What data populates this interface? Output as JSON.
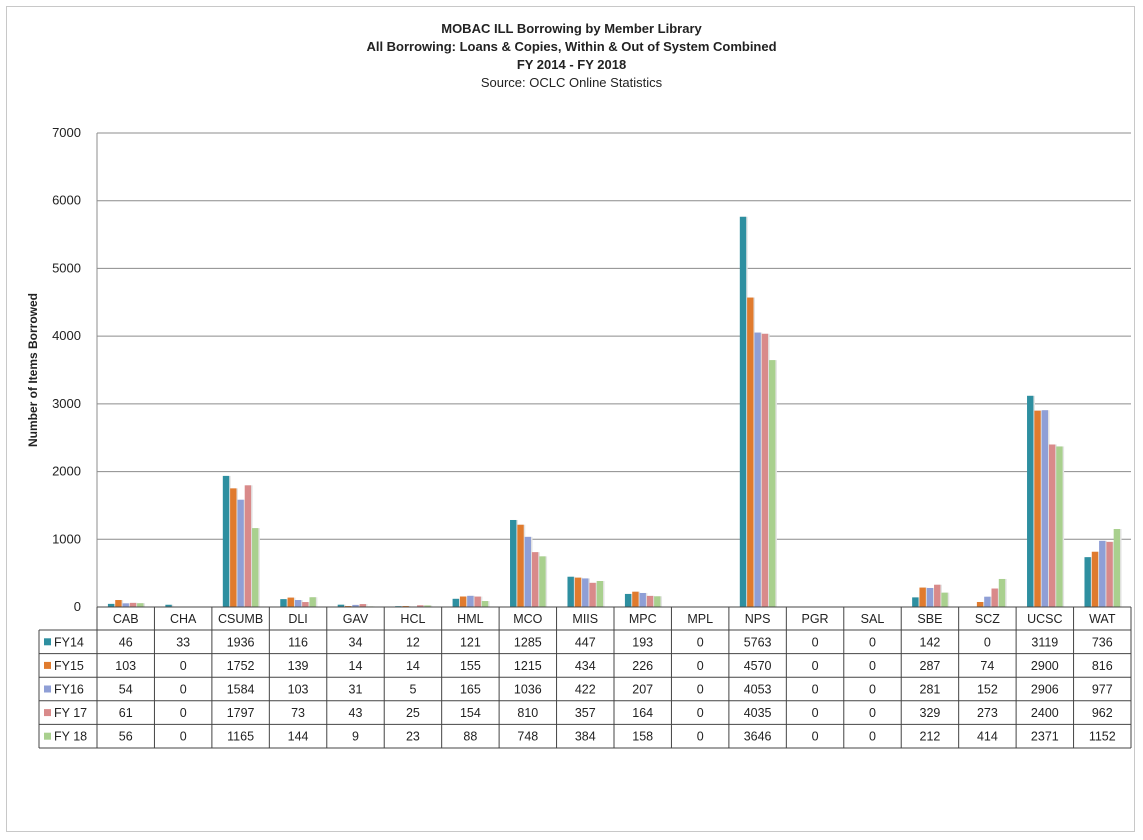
{
  "chart_data": {
    "type": "bar",
    "title": "MOBAC ILL Borrowing by Member Library",
    "subtitle_lines": [
      "All Borrowing: Loans & Copies, Within & Out of System Combined",
      "FY 2014 - FY 2018"
    ],
    "source": "Source: OCLC Online Statistics",
    "ylabel": "Number of Items Borrowed",
    "xlabel": "",
    "ylim": [
      0,
      7000
    ],
    "yticks": [
      0,
      1000,
      2000,
      3000,
      4000,
      5000,
      6000,
      7000
    ],
    "grid": true,
    "legend": "data-table",
    "categories": [
      "CAB",
      "CHA",
      "CSUMB",
      "DLI",
      "GAV",
      "HCL",
      "HML",
      "MCO",
      "MIIS",
      "MPC",
      "MPL",
      "NPS",
      "PGR",
      "SAL",
      "SBE",
      "SCZ",
      "UCSC",
      "WAT"
    ],
    "series": [
      {
        "name": "FY14",
        "color": "#2e8fa0",
        "values": [
          46,
          33,
          1936,
          116,
          34,
          12,
          121,
          1285,
          447,
          193,
          0,
          5763,
          0,
          0,
          142,
          0,
          3119,
          736
        ]
      },
      {
        "name": "FY15",
        "color": "#e07b2e",
        "values": [
          103,
          0,
          1752,
          139,
          14,
          14,
          155,
          1215,
          434,
          226,
          0,
          4570,
          0,
          0,
          287,
          74,
          2900,
          816
        ]
      },
      {
        "name": "FY16",
        "color": "#8f9fd6",
        "values": [
          54,
          0,
          1584,
          103,
          31,
          5,
          165,
          1036,
          422,
          207,
          0,
          4053,
          0,
          0,
          281,
          152,
          2906,
          977
        ]
      },
      {
        "name": "FY 17",
        "color": "#d98a8a",
        "values": [
          61,
          0,
          1797,
          73,
          43,
          25,
          154,
          810,
          357,
          164,
          0,
          4035,
          0,
          0,
          329,
          273,
          2400,
          962
        ]
      },
      {
        "name": "FY 18",
        "color": "#a9d08e",
        "values": [
          56,
          0,
          1165,
          144,
          9,
          23,
          88,
          748,
          384,
          158,
          0,
          3646,
          0,
          0,
          212,
          414,
          2371,
          1152
        ]
      }
    ]
  }
}
